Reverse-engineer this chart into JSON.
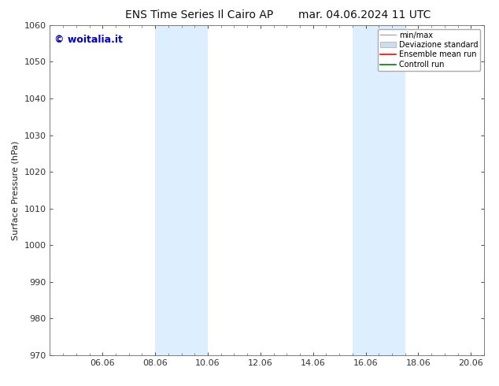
{
  "title": "ENS Time Series Il Cairo AP",
  "title_right": "mar. 04.06.2024 11 UTC",
  "ylabel": "Surface Pressure (hPa)",
  "ylim": [
    970,
    1060
  ],
  "yticks": [
    970,
    980,
    990,
    1000,
    1010,
    1020,
    1030,
    1040,
    1050,
    1060
  ],
  "xtick_labels": [
    "06.06",
    "08.06",
    "10.06",
    "12.06",
    "14.06",
    "16.06",
    "18.06",
    "20.06"
  ],
  "xtick_positions": [
    2,
    4,
    6,
    8,
    10,
    12,
    14,
    16
  ],
  "x_min": 0.0,
  "x_max": 16.5,
  "shaded_bands": [
    {
      "x_start": 4.0,
      "x_end": 5.0,
      "color": "#ddeeff"
    },
    {
      "x_start": 5.0,
      "x_end": 6.0,
      "color": "#ddeeff"
    },
    {
      "x_start": 11.5,
      "x_end": 12.5,
      "color": "#ddeeff"
    },
    {
      "x_start": 12.5,
      "x_end": 13.5,
      "color": "#ddeeff"
    }
  ],
  "watermark_text": "© woitalia.it",
  "watermark_color": "#0000cc",
  "legend_labels": [
    "min/max",
    "Deviazione standard",
    "Ensemble mean run",
    "Controll run"
  ],
  "legend_colors": [
    "#aaaaaa",
    "#ccdded",
    "red",
    "green"
  ],
  "bg_color": "#ffffff",
  "spine_color": "#666666",
  "tick_color": "#333333",
  "title_fontsize": 10,
  "label_fontsize": 8,
  "tick_fontsize": 8,
  "legend_fontsize": 7,
  "watermark_fontsize": 9
}
